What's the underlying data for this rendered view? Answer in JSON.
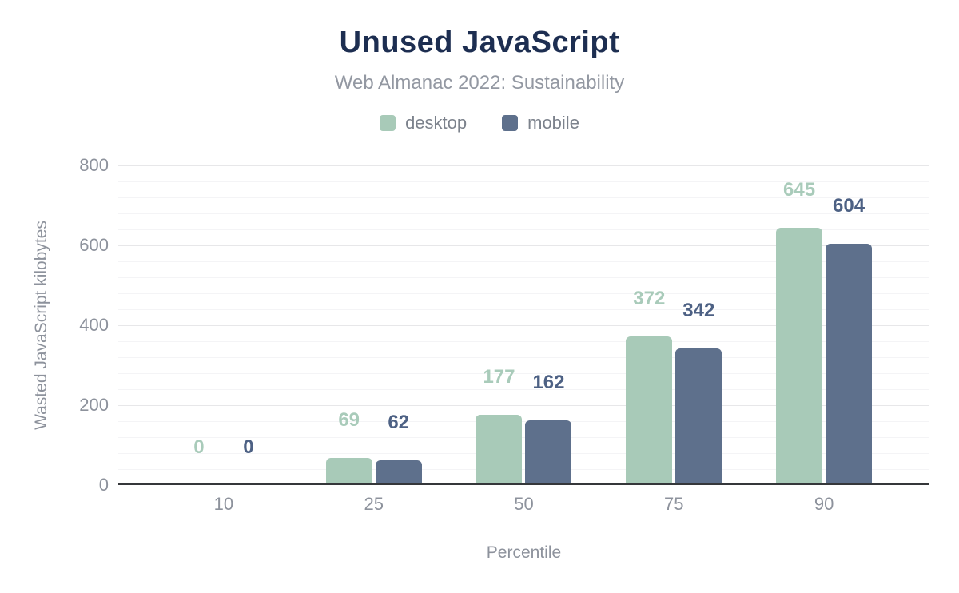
{
  "title": "Unused JavaScript",
  "subtitle": "Web Almanac 2022: Sustainability",
  "theme": {
    "title_color": "#1d2e51",
    "subtitle_color": "#9398a2",
    "legend_text_color": "#7c828c",
    "axis_text_color": "#8d929c",
    "axis_line_color": "#35373a",
    "grid_major_color": "#e7e7e9",
    "grid_minor_color": "#f4f4f6",
    "background": "#ffffff"
  },
  "chart_data": {
    "type": "bar",
    "title": "Unused JavaScript",
    "subtitle": "Web Almanac 2022: Sustainability",
    "categories": [
      "10",
      "25",
      "50",
      "75",
      "90"
    ],
    "series": [
      {
        "name": "desktop",
        "color": "#a8cab8",
        "label_color": "#a9cbba",
        "values": [
          0,
          69,
          177,
          372,
          645
        ]
      },
      {
        "name": "mobile",
        "color": "#5e708c",
        "label_color": "#4d6184",
        "values": [
          0,
          62,
          162,
          342,
          604
        ]
      }
    ],
    "xlabel": "Percentile",
    "ylabel": "Wasted JavaScript kilobytes",
    "ylim": [
      0,
      800
    ],
    "y_major_step": 200,
    "y_minor_step": 40,
    "y_ticks": [
      "0",
      "200",
      "400",
      "600",
      "800"
    ],
    "grid": "horizontal",
    "legend_position": "top",
    "value_labels": "above-bars"
  }
}
